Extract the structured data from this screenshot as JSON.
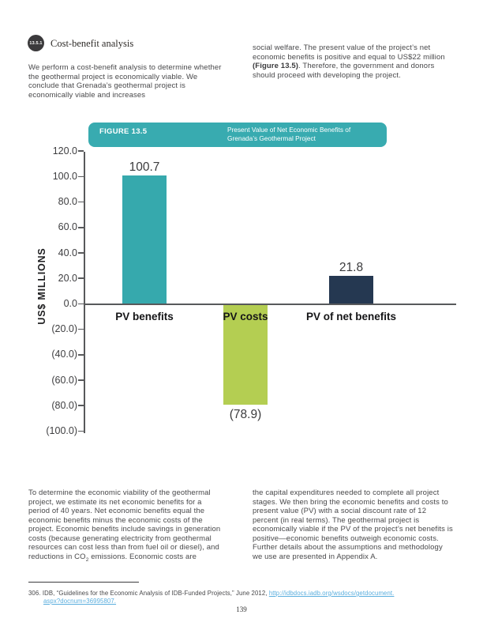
{
  "section": {
    "badge": "13.5.1",
    "heading": "Cost-benefit analysis"
  },
  "intro": {
    "left": "We perform a cost-benefit analysis to determine whether the geothermal project is economically viable. We conclude that Grenada’s geothermal project is economically viable and increases",
    "right_pre": "social welfare. The present value of the project’s net economic benefits is positive and equal to US$22 million ",
    "right_bold": "(Figure 13.5)",
    "right_post": ". Therefore, the government and donors should proceed with developing the project."
  },
  "figure": {
    "label": "FIGURE 13.5",
    "title_line1": "Present Value of Net Economic Benefits of",
    "title_line2": "Grenada’s Geothermal Project",
    "header_color": "#38abb0"
  },
  "chart_data": {
    "type": "bar",
    "title": "Present Value of Net Economic Benefits of Grenada’s Geothermal Project",
    "xlabel": "",
    "ylabel": "US$ MILLIONS",
    "ylim": [
      -100,
      120
    ],
    "grid": false,
    "legend": "none",
    "categories": [
      "PV benefits",
      "PV costs",
      "PV of net benefits"
    ],
    "values": [
      100.7,
      -78.9,
      21.8
    ],
    "bars": [
      {
        "category": "PV benefits",
        "value": 100.7,
        "label": "100.7",
        "color": "#36a9ad"
      },
      {
        "category": "PV costs",
        "value": -78.9,
        "label": "(78.9)",
        "color": "#b4ce52"
      },
      {
        "category": "PV of net benefits",
        "value": 21.8,
        "label": "21.8",
        "color": "#253851"
      }
    ],
    "yticks": [
      {
        "label": "120.0",
        "value": 120
      },
      {
        "label": "100.0",
        "value": 100
      },
      {
        "label": "80.0",
        "value": 80
      },
      {
        "label": "60.0",
        "value": 60
      },
      {
        "label": "40.0",
        "value": 40
      },
      {
        "label": "20.0",
        "value": 20
      },
      {
        "label": "0.0",
        "value": 0
      },
      {
        "label": "(20.0)",
        "value": -20
      },
      {
        "label": "(40.0)",
        "value": -40
      },
      {
        "label": "(60.0)",
        "value": -60
      },
      {
        "label": "(80.0)",
        "value": -80
      },
      {
        "label": "(100.0)",
        "value": -100
      }
    ]
  },
  "body": {
    "left_pre_sub": "To determine the economic viability of the geothermal project, we estimate its net economic benefits for a period of 40 years. Net economic benefits equal the economic benefits minus the economic costs of the project. Economic benefits include savings in generation costs (because generating electricity from geothermal resources can cost less than from fuel oil or diesel), and reductions in CO",
    "left_sub": "2",
    "left_post_sub": " emissions. Economic costs are",
    "right": "the capital expenditures needed to complete all project stages. We then bring the economic benefits and costs to present value (PV) with a social discount rate of 12 percent (in real terms). The geothermal project is economically viable if the PV of the project’s net benefits is positive—economic benefits outweigh economic costs. Further details about the assumptions and methodology we use are presented in Appendix A."
  },
  "footnote": {
    "pre": "306. IDB, “Guidelines for the Economic Analysis of IDB-Funded Projects,” June 2012, ",
    "link_line1": "http://idbdocs.iadb.org/wsdocs/getdocument.",
    "link_line2": "aspx?docnum=36995807.",
    "link_color": "#5aaede"
  },
  "page": {
    "number": "139"
  }
}
